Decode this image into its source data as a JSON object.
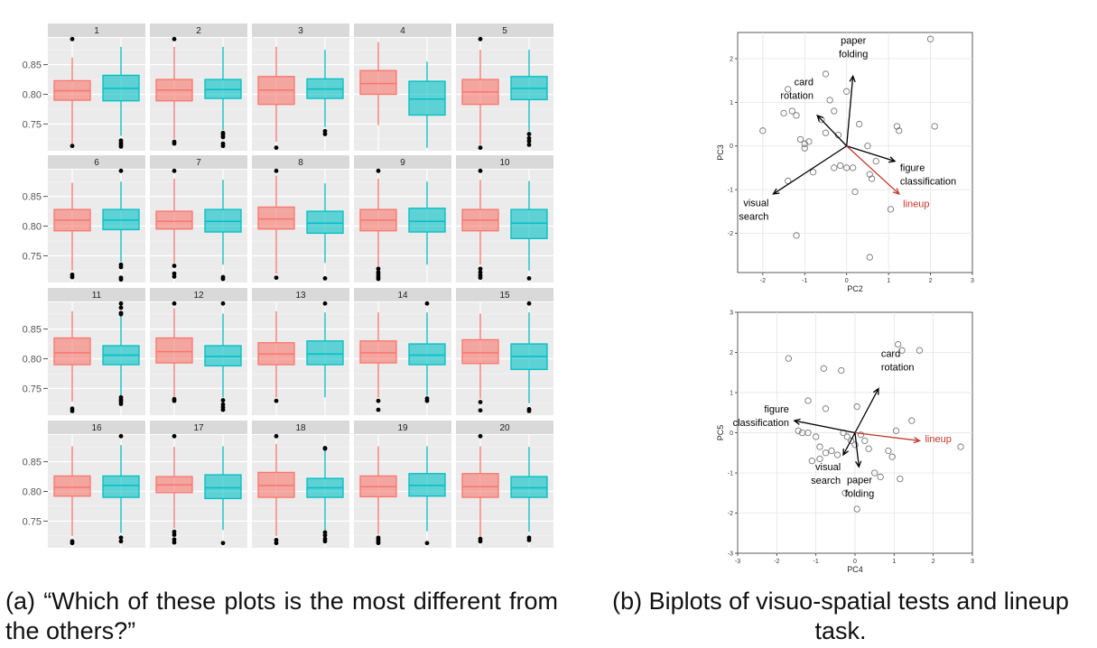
{
  "captions": {
    "a": "(a) “Which of these plots is the most different from the others?”",
    "b": "(b) Biplots of visuo-spatial tests and lineup task."
  },
  "colors": {
    "pink": "#f8766d",
    "teal": "#00bfc4",
    "panel_bg": "#ebebeb",
    "strip_bg": "#d9d9d9",
    "lineup_arrow": "#c0392b"
  },
  "chart_data": [
    {
      "type": "boxplot",
      "grid": true,
      "facets": [
        "1",
        "2",
        "3",
        "4",
        "5",
        "6",
        "7",
        "8",
        "9",
        "10",
        "11",
        "12",
        "13",
        "14",
        "15",
        "16",
        "17",
        "18",
        "19",
        "20"
      ],
      "yticks": [
        0.75,
        0.8,
        0.85
      ],
      "ytick_labels": [
        "0.75",
        "0.80",
        "0.85"
      ],
      "ylim": [
        0.705,
        0.895
      ],
      "series": [
        {
          "color": "#f8766d",
          "boxes": [
            {
              "min": 0.715,
              "q1": 0.79,
              "med": 0.806,
              "q3": 0.823,
              "max": 0.862,
              "outliers": [
                0.893,
                0.713
              ]
            },
            {
              "min": 0.725,
              "q1": 0.789,
              "med": 0.807,
              "q3": 0.825,
              "max": 0.88,
              "outliers": [
                0.893,
                0.72,
                0.717
              ]
            },
            {
              "min": 0.72,
              "q1": 0.783,
              "med": 0.807,
              "q3": 0.83,
              "max": 0.88,
              "outliers": [
                0.71
              ]
            },
            {
              "min": 0.748,
              "q1": 0.8,
              "med": 0.818,
              "q3": 0.84,
              "max": 0.888,
              "outliers": []
            },
            {
              "min": 0.715,
              "q1": 0.783,
              "med": 0.804,
              "q3": 0.825,
              "max": 0.875,
              "outliers": [
                0.893,
                0.71
              ]
            },
            {
              "min": 0.725,
              "q1": 0.792,
              "med": 0.81,
              "q3": 0.828,
              "max": 0.873,
              "outliers": [
                0.718,
                0.714
              ]
            },
            {
              "min": 0.738,
              "q1": 0.795,
              "med": 0.808,
              "q3": 0.825,
              "max": 0.88,
              "outliers": [
                0.893,
                0.733,
                0.72,
                0.715
              ]
            },
            {
              "min": 0.72,
              "q1": 0.795,
              "med": 0.812,
              "q3": 0.832,
              "max": 0.885,
              "outliers": [
                0.893,
                0.713
              ]
            },
            {
              "min": 0.732,
              "q1": 0.792,
              "med": 0.81,
              "q3": 0.828,
              "max": 0.88,
              "outliers": [
                0.893,
                0.728,
                0.722,
                0.718,
                0.714,
                0.711
              ]
            },
            {
              "min": 0.735,
              "q1": 0.792,
              "med": 0.81,
              "q3": 0.828,
              "max": 0.878,
              "outliers": [
                0.893,
                0.728,
                0.722,
                0.717,
                0.713
              ]
            },
            {
              "min": 0.728,
              "q1": 0.79,
              "med": 0.81,
              "q3": 0.835,
              "max": 0.88,
              "outliers": [
                0.716,
                0.712
              ]
            },
            {
              "min": 0.735,
              "q1": 0.793,
              "med": 0.812,
              "q3": 0.835,
              "max": 0.885,
              "outliers": [
                0.893,
                0.732,
                0.729
              ]
            },
            {
              "min": 0.735,
              "q1": 0.79,
              "med": 0.808,
              "q3": 0.827,
              "max": 0.88,
              "outliers": [
                0.729
              ]
            },
            {
              "min": 0.735,
              "q1": 0.793,
              "med": 0.81,
              "q3": 0.83,
              "max": 0.878,
              "outliers": [
                0.729,
                0.714
              ]
            },
            {
              "min": 0.733,
              "q1": 0.792,
              "med": 0.81,
              "q3": 0.832,
              "max": 0.876,
              "outliers": [
                0.727,
                0.713
              ]
            },
            {
              "min": 0.725,
              "q1": 0.792,
              "med": 0.807,
              "q3": 0.826,
              "max": 0.876,
              "outliers": [
                0.716,
                0.713
              ]
            },
            {
              "min": 0.738,
              "q1": 0.798,
              "med": 0.811,
              "q3": 0.825,
              "max": 0.875,
              "outliers": [
                0.893,
                0.732,
                0.727,
                0.719,
                0.714
              ]
            },
            {
              "min": 0.725,
              "q1": 0.79,
              "med": 0.81,
              "q3": 0.832,
              "max": 0.88,
              "outliers": [
                0.893,
                0.718,
                0.713
              ]
            },
            {
              "min": 0.728,
              "q1": 0.791,
              "med": 0.808,
              "q3": 0.826,
              "max": 0.876,
              "outliers": [
                0.722,
                0.719,
                0.716,
                0.713
              ]
            },
            {
              "min": 0.723,
              "q1": 0.79,
              "med": 0.808,
              "q3": 0.83,
              "max": 0.876,
              "outliers": [
                0.893,
                0.72,
                0.716
              ]
            }
          ]
        },
        {
          "color": "#00bfc4",
          "boxes": [
            {
              "min": 0.73,
              "q1": 0.789,
              "med": 0.81,
              "q3": 0.832,
              "max": 0.88,
              "outliers": [
                0.722,
                0.718,
                0.715,
                0.712
              ]
            },
            {
              "min": 0.74,
              "q1": 0.793,
              "med": 0.808,
              "q3": 0.825,
              "max": 0.88,
              "outliers": [
                0.735,
                0.732,
                0.728,
                0.717,
                0.713
              ]
            },
            {
              "min": 0.745,
              "q1": 0.793,
              "med": 0.809,
              "q3": 0.826,
              "max": 0.875,
              "outliers": [
                0.738,
                0.733
              ]
            },
            {
              "min": 0.71,
              "q1": 0.765,
              "med": 0.792,
              "q3": 0.822,
              "max": 0.855,
              "outliers": []
            },
            {
              "min": 0.738,
              "q1": 0.791,
              "med": 0.81,
              "q3": 0.83,
              "max": 0.875,
              "outliers": [
                0.733,
                0.726,
                0.721,
                0.715
              ]
            },
            {
              "min": 0.74,
              "q1": 0.794,
              "med": 0.81,
              "q3": 0.828,
              "max": 0.875,
              "outliers": [
                0.893,
                0.735,
                0.731,
                0.713,
                0.71
              ]
            },
            {
              "min": 0.735,
              "q1": 0.79,
              "med": 0.808,
              "q3": 0.828,
              "max": 0.878,
              "outliers": [
                0.714,
                0.711
              ]
            },
            {
              "min": 0.738,
              "q1": 0.788,
              "med": 0.805,
              "q3": 0.825,
              "max": 0.872,
              "outliers": [
                0.712
              ]
            },
            {
              "min": 0.735,
              "q1": 0.79,
              "med": 0.808,
              "q3": 0.83,
              "max": 0.875,
              "outliers": []
            },
            {
              "min": 0.725,
              "q1": 0.779,
              "med": 0.805,
              "q3": 0.828,
              "max": 0.876,
              "outliers": [
                0.712
              ]
            },
            {
              "min": 0.738,
              "q1": 0.79,
              "med": 0.806,
              "q3": 0.822,
              "max": 0.872,
              "outliers": [
                0.893,
                0.886,
                0.877,
                0.875,
                0.735,
                0.731,
                0.728,
                0.724
              ]
            },
            {
              "min": 0.735,
              "q1": 0.788,
              "med": 0.804,
              "q3": 0.822,
              "max": 0.876,
              "outliers": [
                0.893,
                0.73,
                0.723,
                0.718,
                0.714
              ]
            },
            {
              "min": 0.735,
              "q1": 0.79,
              "med": 0.808,
              "q3": 0.83,
              "max": 0.878,
              "outliers": [
                0.893
              ]
            },
            {
              "min": 0.738,
              "q1": 0.79,
              "med": 0.806,
              "q3": 0.825,
              "max": 0.878,
              "outliers": [
                0.893,
                0.733,
                0.729
              ]
            },
            {
              "min": 0.725,
              "q1": 0.782,
              "med": 0.804,
              "q3": 0.825,
              "max": 0.878,
              "outliers": [
                0.893,
                0.715,
                0.712
              ]
            },
            {
              "min": 0.73,
              "q1": 0.79,
              "med": 0.81,
              "q3": 0.826,
              "max": 0.878,
              "outliers": [
                0.893,
                0.722,
                0.716
              ]
            },
            {
              "min": 0.735,
              "q1": 0.788,
              "med": 0.806,
              "q3": 0.828,
              "max": 0.876,
              "outliers": [
                0.713
              ]
            },
            {
              "min": 0.735,
              "q1": 0.79,
              "med": 0.806,
              "q3": 0.822,
              "max": 0.875,
              "outliers": [
                0.873,
                0.872,
                0.731,
                0.726,
                0.72,
                0.716
              ]
            },
            {
              "min": 0.733,
              "q1": 0.792,
              "med": 0.81,
              "q3": 0.83,
              "max": 0.876,
              "outliers": [
                0.713
              ]
            },
            {
              "min": 0.732,
              "q1": 0.79,
              "med": 0.806,
              "q3": 0.825,
              "max": 0.875,
              "outliers": [
                0.722,
                0.718
              ]
            }
          ]
        }
      ]
    },
    {
      "type": "scatter",
      "subtype": "biplot",
      "grid": true,
      "xlabel": "PC2",
      "ylabel": "PC3",
      "xlim": [
        -2.6,
        3.0
      ],
      "ylim": [
        -2.9,
        2.6
      ],
      "xticks": [
        -2,
        -1,
        0,
        1,
        2,
        3
      ],
      "yticks": [
        -2,
        -1,
        0,
        1,
        2
      ],
      "points": [
        [
          -2.0,
          0.35
        ],
        [
          -1.4,
          1.3
        ],
        [
          -1.5,
          0.75
        ],
        [
          -1.3,
          0.8
        ],
        [
          -1.2,
          0.7
        ],
        [
          -1.1,
          0.15
        ],
        [
          -1.0,
          0.05
        ],
        [
          -1.0,
          -0.05
        ],
        [
          -0.9,
          0.1
        ],
        [
          -0.8,
          -0.6
        ],
        [
          -0.6,
          0.6
        ],
        [
          -0.5,
          0.3
        ],
        [
          -0.4,
          1.05
        ],
        [
          -0.3,
          0.8
        ],
        [
          -0.2,
          0.25
        ],
        [
          -0.15,
          -0.45
        ],
        [
          0.0,
          1.25
        ],
        [
          -0.5,
          1.65
        ],
        [
          -0.3,
          -0.5
        ],
        [
          0.0,
          -0.5
        ],
        [
          0.15,
          -0.5
        ],
        [
          0.2,
          -1.05
        ],
        [
          0.5,
          0.0
        ],
        [
          0.55,
          -0.65
        ],
        [
          0.6,
          -0.75
        ],
        [
          0.7,
          -0.35
        ],
        [
          1.05,
          -1.45
        ],
        [
          1.2,
          0.45
        ],
        [
          1.25,
          0.35
        ],
        [
          2.0,
          2.45
        ],
        [
          2.1,
          0.45
        ],
        [
          -1.2,
          -2.05
        ],
        [
          0.55,
          -2.55
        ],
        [
          -1.4,
          -0.8
        ],
        [
          0.3,
          0.5
        ]
      ],
      "arrows": [
        {
          "label": "paper\nfolding",
          "x": 0.15,
          "y": 1.6
        },
        {
          "label": "card\nrotation",
          "x": -0.7,
          "y": 0.7
        },
        {
          "label": "figure\nclassification",
          "x": 1.15,
          "y": -0.35
        },
        {
          "label": "visual\nsearch",
          "x": -1.75,
          "y": -1.1
        },
        {
          "label": "lineup",
          "x": 1.25,
          "y": -1.1,
          "color": "#c0392b"
        }
      ]
    },
    {
      "type": "scatter",
      "subtype": "biplot",
      "grid": true,
      "xlabel": "PC4",
      "ylabel": "PC5",
      "xlim": [
        -3.0,
        3.0
      ],
      "ylim": [
        -3.0,
        3.0
      ],
      "xticks": [
        -3,
        -2,
        -1,
        0,
        1,
        2,
        3
      ],
      "yticks": [
        -3,
        -2,
        -1,
        0,
        1,
        2,
        3
      ],
      "points": [
        [
          -1.7,
          1.85
        ],
        [
          -0.8,
          1.6
        ],
        [
          -0.35,
          1.55
        ],
        [
          -1.2,
          0.8
        ],
        [
          -0.75,
          0.6
        ],
        [
          -1.45,
          0.05
        ],
        [
          -1.35,
          0.0
        ],
        [
          -1.2,
          0.0
        ],
        [
          -1.0,
          -0.1
        ],
        [
          -0.9,
          -0.35
        ],
        [
          -0.75,
          -0.5
        ],
        [
          -0.6,
          -0.45
        ],
        [
          -0.45,
          -0.55
        ],
        [
          -0.9,
          -0.65
        ],
        [
          -1.1,
          -0.7
        ],
        [
          -0.3,
          0.0
        ],
        [
          -0.2,
          -0.1
        ],
        [
          -0.1,
          -0.2
        ],
        [
          0.0,
          -0.3
        ],
        [
          0.25,
          -0.2
        ],
        [
          0.35,
          -0.4
        ],
        [
          0.5,
          -1.0
        ],
        [
          0.65,
          -1.1
        ],
        [
          0.95,
          -0.6
        ],
        [
          0.85,
          -0.45
        ],
        [
          1.15,
          -1.15
        ],
        [
          1.05,
          0.05
        ],
        [
          1.1,
          2.2
        ],
        [
          1.2,
          2.05
        ],
        [
          1.65,
          2.05
        ],
        [
          1.45,
          0.3
        ],
        [
          2.7,
          -0.35
        ],
        [
          0.05,
          0.65
        ],
        [
          -0.25,
          -1.5
        ],
        [
          0.05,
          -1.9
        ],
        [
          0.15,
          -0.05
        ]
      ],
      "arrows": [
        {
          "label": "card\nrotation",
          "x": 0.6,
          "y": 1.1
        },
        {
          "label": "figure\nclassification",
          "x": -1.55,
          "y": 0.3
        },
        {
          "label": "visual\nsearch",
          "x": -0.3,
          "y": -0.55
        },
        {
          "label": "paper\nfolding",
          "x": 0.1,
          "y": -0.85
        },
        {
          "label": "lineup",
          "x": 1.65,
          "y": -0.2,
          "color": "#c0392b"
        }
      ]
    }
  ]
}
